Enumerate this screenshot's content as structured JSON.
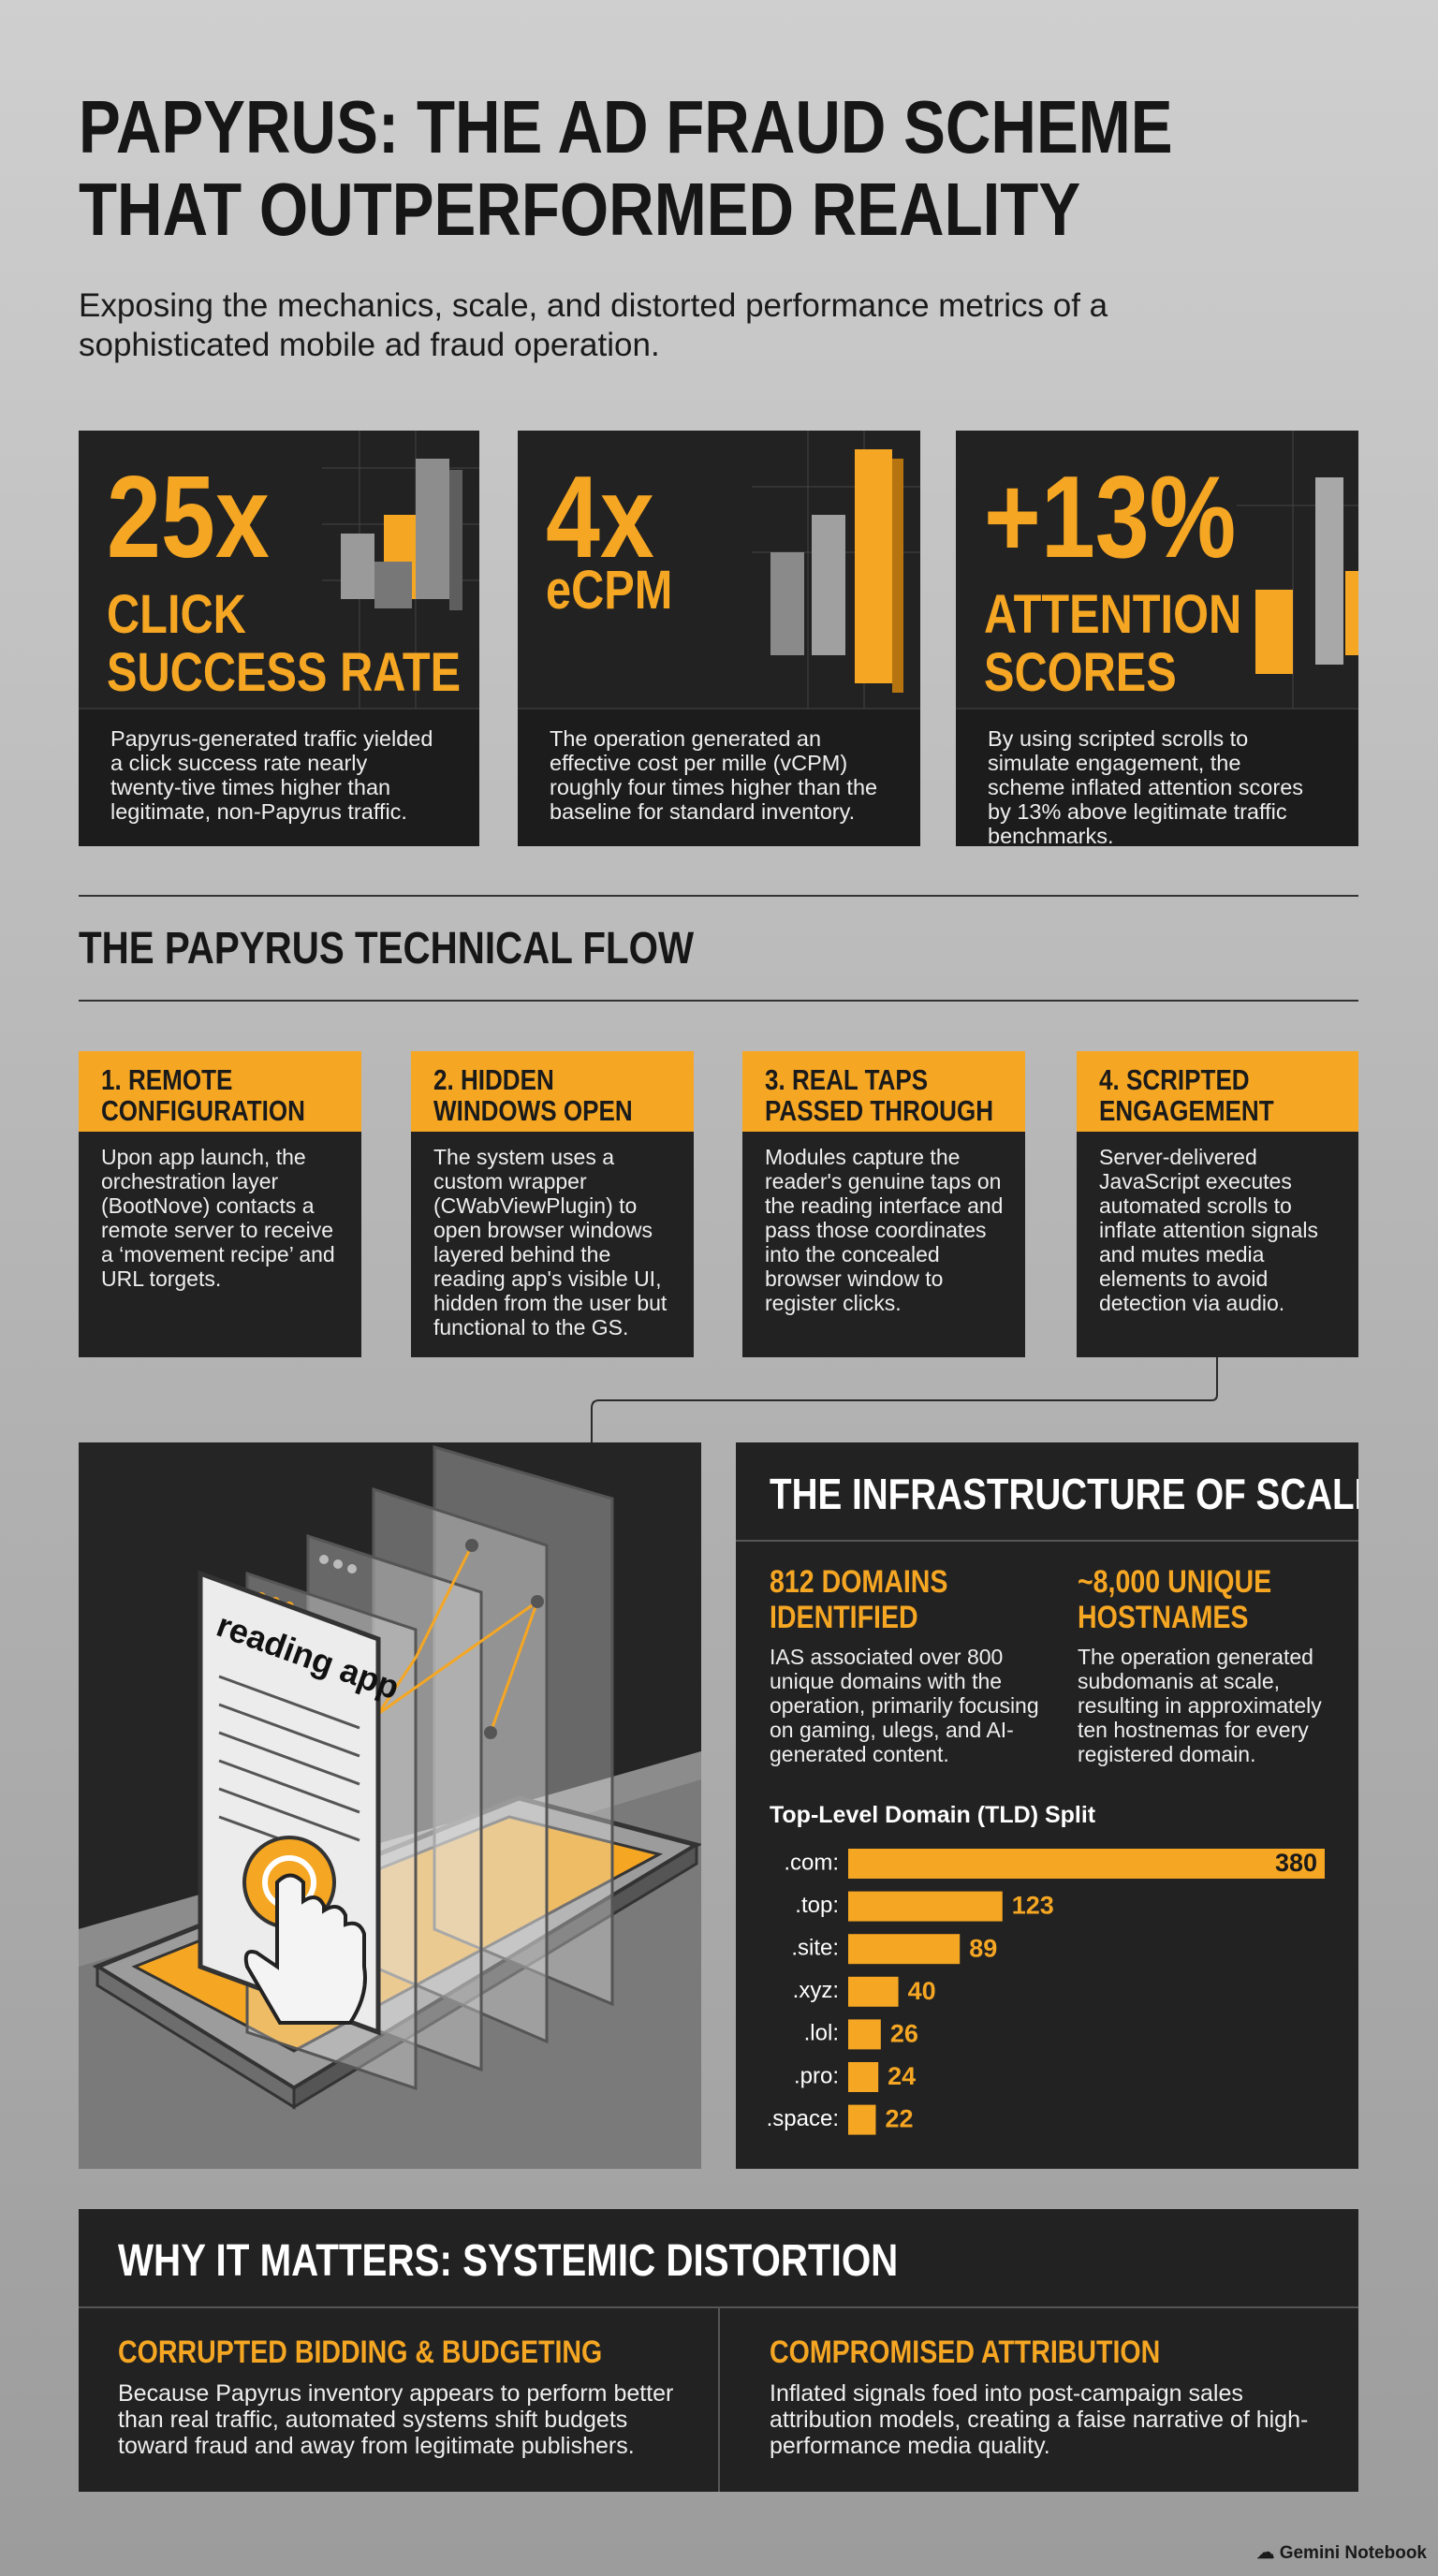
{
  "header": {
    "title_lines": [
      "PAPYRUS: THE AD FRAUD SCHEME",
      "THAT OUTPERFORMED REALITY"
    ],
    "subtitle": "Exposing the mechanics, scale, and distorted performance metrics of a sophisticated mobile ad fraud operation."
  },
  "stats": [
    {
      "figure": "25x",
      "label_lines": [
        "CLICK",
        "SUCCESS RATE"
      ],
      "description": "Papyrus-generated traffic yielded a click success rate nearly twenty-tive times higher than legitimate, non-Papyrus traffic."
    },
    {
      "figure": "4x",
      "label_lines": [
        "eCPM"
      ],
      "description": "The operation generated an effective cost per mille (vCPM) roughly four times higher than the baseline for standard inventory."
    },
    {
      "figure": "+13%",
      "label_lines": [
        "ATTENTION",
        "SCORES"
      ],
      "description": "By using scripted scrolls to simulate engagement, the scheme inflated attention scores by 13% above legitimate traffic benchmarks."
    }
  ],
  "flow": {
    "title": "THE PAPYRUS TECHNICAL FLOW",
    "steps": [
      {
        "title_lines": [
          "1. REMOTE",
          "CONFIGURATION"
        ],
        "text": "Upon app launch, the orchestration layer (BootNove) contacts a remote server to receive a ‘movement recipe’ and URL torgets."
      },
      {
        "title_lines": [
          "2. HIDDEN",
          "WINDOWS OPEN"
        ],
        "text": "The system uses a custom wrapper (CWabViewPlugin) to open browser windows layered behind the reading app's visible UI, hidden from the user but functional to the GS."
      },
      {
        "title_lines": [
          "3. REAL TAPS",
          "PASSED THROUGH"
        ],
        "text": "Modules capture the reader's genuine taps on the reading interface and pass those coordinates into the concealed browser window to register clicks."
      },
      {
        "title_lines": [
          "4. SCRIPTED",
          "ENGAGEMENT"
        ],
        "text": "Server-delivered JavaScript executes automated scrolls to inflate attention signals and mutes media elements to avoid detection via audio."
      }
    ]
  },
  "illustration": {
    "label": "reading app"
  },
  "infrastructure": {
    "title": "THE INFRASTRUCTURE OF SCALE",
    "facts": [
      {
        "title_lines": [
          "812 DOMAINS",
          "IDENTIFIED"
        ],
        "text": "IAS associated over 800 unique domains with the operation, primarily focusing on gaming, ulegs, and AI-generated content."
      },
      {
        "title_lines": [
          "~8,000 UNIQUE",
          "HOSTNAMES"
        ],
        "text": "The operation generated subdomanis at scale, resulting in approximately ten hostnemas for every registered domain."
      }
    ],
    "chart_data": {
      "type": "bar",
      "orientation": "horizontal",
      "title": "Top-Level Domain (TLD) Split",
      "categories": [
        ".com:",
        ".top:",
        ".site:",
        ".xyz:",
        ".lol:",
        ".pro:",
        ".space:"
      ],
      "values": [
        380,
        123,
        89,
        40,
        26,
        24,
        22
      ],
      "color": "#f5a623"
    }
  },
  "impact": {
    "title": "WHY IT MATTERS: SYSTEMIC DISTORTION",
    "points": [
      {
        "title": "CORRUPTED BIDDING & BUDGETING",
        "text": "Because Papyrus inventory appears to perform better than real traffic, automated systems shift budgets toward fraud and away from legitimate publishers."
      },
      {
        "title": "COMPROMISED ATTRIBUTION",
        "text": "Inflated signals foed into post-campaign sales attribution models, creating a faise narrative of high-performance media quality."
      }
    ]
  },
  "footer": {
    "brand": "Gemini Notebook"
  }
}
